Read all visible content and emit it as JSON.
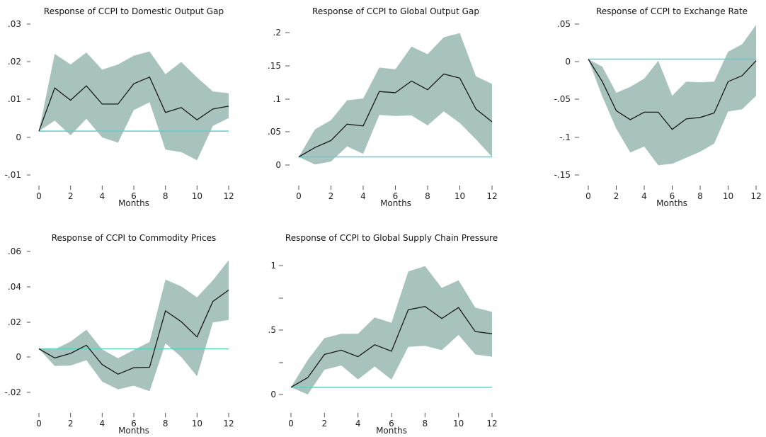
{
  "style": {
    "band_color": "#a8c3bd",
    "line_color": "#1a1a1a",
    "zero_color": "#5fd0c4"
  },
  "chart_data": [
    {
      "type": "line",
      "title": "Response of CCPI to Domestic Output Gap",
      "xlabel": "Months",
      "ylabel": "",
      "x": [
        0,
        1,
        2,
        3,
        4,
        5,
        6,
        7,
        8,
        9,
        10,
        11,
        12
      ],
      "xticks": [
        "0",
        "2",
        "4",
        "6",
        "8",
        "10",
        "12"
      ],
      "yticks": [
        ".03",
        ".02",
        ".01",
        "0",
        "-.01"
      ],
      "ylim": [
        -0.0125,
        0.0305
      ],
      "series": [
        {
          "role": "response",
          "values": [
            0,
            0.0123,
            0.0088,
            0.0129,
            0.0077,
            0.0077,
            0.0135,
            0.0154,
            0.0053,
            0.0067,
            0.0032,
            0.0063,
            0.0071
          ]
        },
        {
          "role": "upper",
          "values": [
            0,
            0.022,
            0.019,
            0.0224,
            0.0175,
            0.019,
            0.0215,
            0.0227,
            0.0162,
            0.0197,
            0.0153,
            0.0113,
            0.0108
          ]
        },
        {
          "role": "lower",
          "values": [
            0,
            0.003,
            -0.0012,
            0.0035,
            -0.0018,
            -0.0033,
            0.006,
            0.0082,
            -0.0053,
            -0.006,
            -0.0083,
            0.0015,
            0.0037
          ]
        }
      ]
    },
    {
      "type": "line",
      "title": "Response of CCPI to Global Output Gap",
      "xlabel": "Months",
      "ylabel": "",
      "x": [
        0,
        1,
        2,
        3,
        4,
        5,
        6,
        7,
        8,
        9,
        10,
        11,
        12
      ],
      "xticks": [
        "0",
        "2",
        "4",
        "6",
        "8",
        "10",
        "12"
      ],
      "yticks": [
        ".2",
        ".15",
        ".1",
        ".05",
        "0"
      ],
      "ylim": [
        -0.014,
        0.213
      ],
      "series": [
        {
          "role": "response",
          "values": [
            0,
            0.016,
            0.028,
            0.056,
            0.053,
            0.112,
            0.11,
            0.13,
            0.115,
            0.142,
            0.135,
            0.082,
            0.06
          ]
        },
        {
          "role": "upper",
          "values": [
            0,
            0.047,
            0.063,
            0.097,
            0.1,
            0.153,
            0.15,
            0.189,
            0.176,
            0.205,
            0.212,
            0.138,
            0.125
          ]
        },
        {
          "role": "lower",
          "values": [
            0,
            -0.013,
            -0.008,
            0.018,
            0.005,
            0.072,
            0.07,
            0.071,
            0.054,
            0.078,
            0.058,
            0.03,
            0
          ]
        }
      ]
    },
    {
      "type": "line",
      "title": "Response of CCPI to Exchange Rate",
      "xlabel": "Months",
      "ylabel": "",
      "x": [
        0,
        1,
        2,
        3,
        4,
        5,
        6,
        7,
        8,
        9,
        10,
        11,
        12
      ],
      "xticks": [
        "0",
        "2",
        "4",
        "6",
        "8",
        "10",
        "12"
      ],
      "yticks": [
        ".05",
        "0",
        "-.05",
        "-.1",
        "-.15"
      ],
      "ylim": [
        -0.155,
        0.047
      ],
      "series": [
        {
          "role": "response",
          "values": [
            0,
            -0.03,
            -0.069,
            -0.081,
            -0.071,
            -0.071,
            -0.094,
            -0.08,
            -0.078,
            -0.072,
            -0.03,
            -0.022,
            -0.002
          ]
        },
        {
          "role": "upper",
          "values": [
            0,
            -0.01,
            -0.045,
            -0.037,
            -0.026,
            -0.002,
            -0.049,
            -0.03,
            -0.031,
            -0.03,
            0.01,
            0.02,
            0.046
          ]
        },
        {
          "role": "lower",
          "values": [
            0,
            -0.05,
            -0.093,
            -0.125,
            -0.117,
            -0.142,
            -0.14,
            -0.132,
            -0.124,
            -0.113,
            -0.07,
            -0.067,
            -0.049
          ]
        }
      ]
    },
    {
      "type": "line",
      "title": "Response of CCPI to Commodity Prices",
      "xlabel": "Months",
      "ylabel": "",
      "x": [
        0,
        1,
        2,
        3,
        4,
        5,
        6,
        7,
        8,
        9,
        10,
        11,
        12
      ],
      "xticks": [
        "0",
        "2",
        "4",
        "6",
        "8",
        "10",
        "12"
      ],
      "yticks": [
        ".06",
        ".04",
        ".02",
        "0",
        "-.02"
      ],
      "ylim": [
        -0.0263,
        0.0588
      ],
      "series": [
        {
          "role": "response",
          "values": [
            0,
            -0.0055,
            -0.0028,
            0.0022,
            -0.0095,
            -0.0153,
            -0.0114,
            -0.0111,
            0.0229,
            0.0164,
            0.0072,
            0.0286,
            0.0355
          ]
        },
        {
          "role": "upper",
          "values": [
            0,
            -0.0003,
            0.0044,
            0.0115,
            -0.0004,
            -0.0057,
            -0.0007,
            0.0042,
            0.0418,
            0.0377,
            0.0311,
            0.0414,
            0.0535
          ]
        },
        {
          "role": "lower",
          "values": [
            0,
            -0.0104,
            -0.0101,
            -0.0069,
            -0.0198,
            -0.0245,
            -0.0223,
            -0.0256,
            0.0033,
            -0.0049,
            -0.0166,
            0.0159,
            0.0175
          ]
        }
      ]
    },
    {
      "type": "line",
      "title": "Response of CCPI to Global Supply Chain Pressure",
      "xlabel": "Months",
      "ylabel": "",
      "x": [
        0,
        1,
        2,
        3,
        4,
        5,
        6,
        7,
        8,
        9,
        10,
        11,
        12
      ],
      "xticks": [
        "0",
        "2",
        "4",
        "6",
        "8",
        "10",
        "12"
      ],
      "yticks": [
        "1",
        "",
        ".5",
        "",
        "0"
      ],
      "ylim": [
        -0.066,
        1.114
      ],
      "series": [
        {
          "role": "response",
          "values": [
            0,
            0.089,
            0.3,
            0.34,
            0.28,
            0.39,
            0.33,
            0.71,
            0.74,
            0.63,
            0.73,
            0.51,
            0.49
          ]
        },
        {
          "role": "upper",
          "values": [
            0,
            0.25,
            0.45,
            0.49,
            0.49,
            0.64,
            0.59,
            1.06,
            1.11,
            0.91,
            0.98,
            0.73,
            0.69
          ]
        },
        {
          "role": "lower",
          "values": [
            0,
            -0.066,
            0.16,
            0.2,
            0.073,
            0.19,
            0.07,
            0.37,
            0.38,
            0.34,
            0.48,
            0.3,
            0.28
          ]
        }
      ]
    }
  ]
}
